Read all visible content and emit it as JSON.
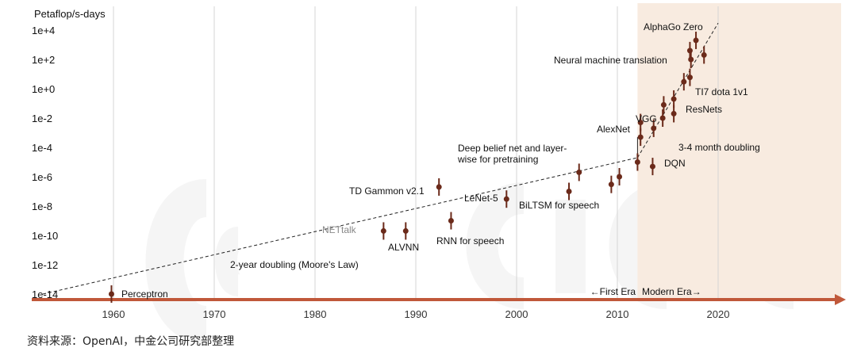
{
  "source_note": "资料来源：OpenAI，中金公司研究部整理",
  "watermark": "CICC 中金公司",
  "chart_data": {
    "type": "scatter",
    "ylabel": "Petaflop/s-days",
    "yscale": "log",
    "ylim": [
      1e-15,
      100000.0
    ],
    "xlim": [
      1953,
      2030
    ],
    "y_ticks": [
      {
        "value": 10000.0,
        "label": "1e+4"
      },
      {
        "value": 100.0,
        "label": "1e+2"
      },
      {
        "value": 1.0,
        "label": "1e+0"
      },
      {
        "value": 0.01,
        "label": "1e-2"
      },
      {
        "value": 0.0001,
        "label": "1e-4"
      },
      {
        "value": 1e-06,
        "label": "1e-6"
      },
      {
        "value": 1e-08,
        "label": "1e-8"
      },
      {
        "value": 1e-10,
        "label": "1e-10"
      },
      {
        "value": 1e-12,
        "label": "1e-12"
      },
      {
        "value": 1e-14,
        "label": "1e-14"
      }
    ],
    "x_ticks": [
      {
        "value": 1960,
        "label": "1960"
      },
      {
        "value": 1970,
        "label": "1970"
      },
      {
        "value": 1980,
        "label": "1980"
      },
      {
        "value": 1990,
        "label": "1990"
      },
      {
        "value": 2000,
        "label": "2000"
      },
      {
        "value": 2010,
        "label": "2010"
      },
      {
        "value": 2020,
        "label": "2020"
      }
    ],
    "grid": "vertical",
    "shaded_region": {
      "x_from": 2012,
      "x_to": 2030,
      "color": "#f8ebe0"
    },
    "colors": {
      "points": "#6b2a1a",
      "axis": "#c0583a",
      "trend": "#222222",
      "shade": "#f8ebe0"
    },
    "trend_lines": [
      {
        "label": "2-year doubling (Moore's Law)",
        "from": [
          1953,
          1e-14
        ],
        "to": [
          2012,
          2e-05
        ]
      },
      {
        "label": "3-4 month doubling",
        "from": [
          2012,
          2e-05
        ],
        "to": [
          2020,
          30000.0
        ]
      }
    ],
    "era_labels": [
      "←First Era",
      "Modern Era→"
    ],
    "points": [
      {
        "name": "Perceptron",
        "x": 1959.8,
        "y": 1e-14
      },
      {
        "name": "NETtalk",
        "x": 1986.8,
        "y": 2e-10
      },
      {
        "name": "ALVNN",
        "x": 1989,
        "y": 2e-10
      },
      {
        "name": "TD Gammon v2.1",
        "x": 1992.3,
        "y": 2e-07
      },
      {
        "name": "RNN for speech",
        "x": 1993.5,
        "y": 1e-09
      },
      {
        "name": "LeNet-5",
        "x": 1999,
        "y": 3e-08
      },
      {
        "name": "BiLTSM for speech",
        "x": 2005.2,
        "y": 1e-07
      },
      {
        "name": "Deep belief net and layer-wise for pretraining",
        "x": 2006.2,
        "y": 2e-06
      },
      {
        "name": "",
        "x": 2009.4,
        "y": 3e-07
      },
      {
        "name": "",
        "x": 2010.2,
        "y": 1e-06
      },
      {
        "name": "",
        "x": 2012,
        "y": 1e-05
      },
      {
        "name": "AlexNet",
        "x": 2012.3,
        "y": 0.0005
      },
      {
        "name": "",
        "x": 2012.3,
        "y": 0.005
      },
      {
        "name": "DQN",
        "x": 2013.5,
        "y": 5e-06
      },
      {
        "name": "",
        "x": 2013.6,
        "y": 0.002
      },
      {
        "name": "VGG",
        "x": 2014.5,
        "y": 0.01
      },
      {
        "name": "",
        "x": 2014.6,
        "y": 0.08
      },
      {
        "name": "ResNets",
        "x": 2015.6,
        "y": 0.2
      },
      {
        "name": "",
        "x": 2015.6,
        "y": 0.02
      },
      {
        "name": "TI7 dota 1v1",
        "x": 2017.2,
        "y": 6
      },
      {
        "name": "",
        "x": 2016.6,
        "y": 3
      },
      {
        "name": "Neural machine translation",
        "x": 2017.3,
        "y": 100
      },
      {
        "name": "",
        "x": 2017.2,
        "y": 400
      },
      {
        "name": "AlphaGo Zero",
        "x": 2017.8,
        "y": 2000
      },
      {
        "name": "",
        "x": 2018.6,
        "y": 200
      }
    ]
  }
}
